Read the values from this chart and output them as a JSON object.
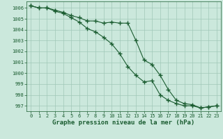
{
  "bg_color": "#cbe8dc",
  "grid_color": "#a0c8b8",
  "line_color": "#1a5c30",
  "x_values": [
    0,
    1,
    2,
    3,
    4,
    5,
    6,
    7,
    8,
    9,
    10,
    11,
    12,
    13,
    14,
    15,
    16,
    17,
    18,
    19,
    20,
    21,
    22,
    23
  ],
  "series1": [
    1006.2,
    1006.0,
    1006.0,
    1005.8,
    1005.6,
    1005.3,
    1005.1,
    1004.8,
    1004.8,
    1004.6,
    1004.7,
    1004.6,
    1004.6,
    1003.0,
    1001.2,
    1000.8,
    999.8,
    998.5,
    997.5,
    997.2,
    997.1,
    996.8,
    996.9,
    997.0
  ],
  "series2": [
    1006.2,
    1006.0,
    1006.0,
    1005.7,
    1005.5,
    1005.1,
    1004.7,
    1004.1,
    1003.8,
    1003.3,
    1002.7,
    1001.8,
    1000.6,
    999.8,
    999.2,
    999.3,
    998.0,
    997.5,
    997.2,
    997.0,
    997.0,
    996.8,
    996.9,
    997.0
  ],
  "ylim": [
    996.5,
    1006.6
  ],
  "yticks": [
    997,
    998,
    999,
    1000,
    1001,
    1002,
    1003,
    1004,
    1005,
    1006
  ],
  "xtick_labels": [
    "0",
    "1",
    "2",
    "3",
    "4",
    "5",
    "6",
    "7",
    "8",
    "9",
    "10",
    "11",
    "12",
    "13",
    "14",
    "15",
    "16",
    "17",
    "18",
    "19",
    "20",
    "21",
    "22",
    "23"
  ],
  "xlabel": "Graphe pression niveau de la mer (hPa)",
  "tick_fontsize": 5.0,
  "xlabel_fontsize": 6.5,
  "marker": "+",
  "markersize": 4.0,
  "linewidth": 0.8
}
